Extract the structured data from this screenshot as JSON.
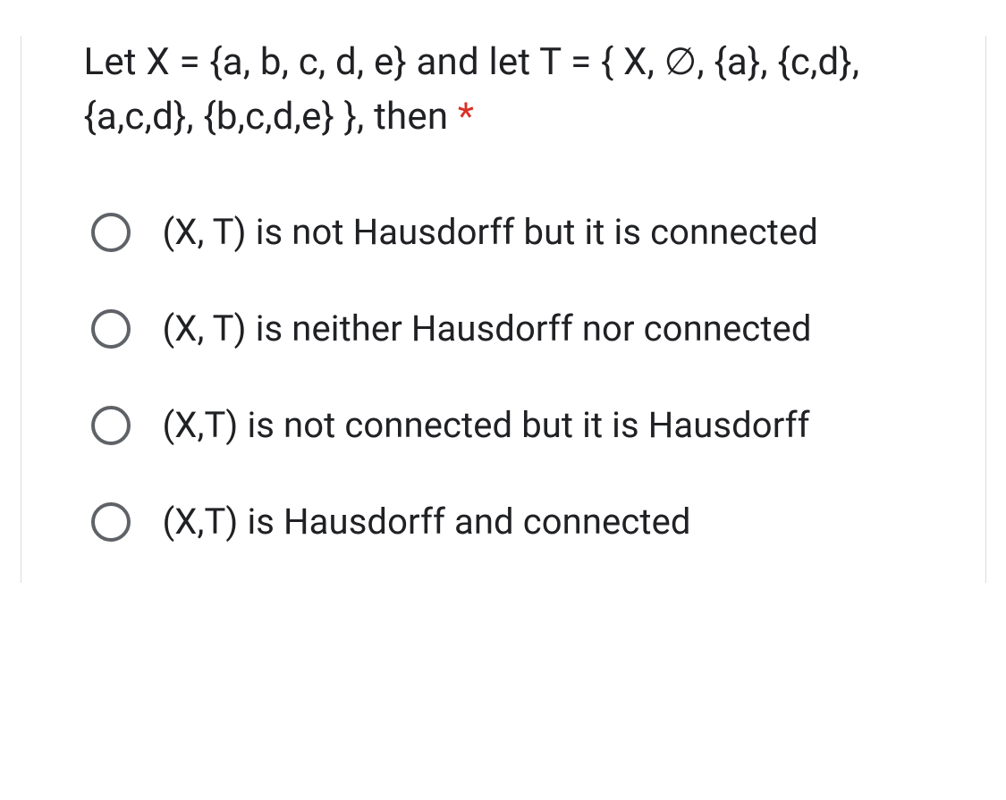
{
  "question": {
    "text": "Let X = {a, b, c, d, e} and let T = { X, ∅, {a}, {c,d}, {a,c,d}, {b,c,d,e} }, then ",
    "required_mark": "*"
  },
  "options": [
    {
      "label": "(X, T) is not Hausdorff but it is connected"
    },
    {
      "label": "(X, T) is neither Hausdorff nor connected"
    },
    {
      "label": "(X,T) is not connected but it is Hausdorff"
    },
    {
      "label": "(X,T) is Hausdorff and connected"
    }
  ],
  "colors": {
    "text": "#202124",
    "required": "#d93025",
    "radio_border": "#5f6368",
    "card_border": "#dadce0",
    "background": "#ffffff"
  },
  "typography": {
    "question_fontsize": 42,
    "option_fontsize": 40,
    "font_family": "Roboto, Arial, sans-serif"
  }
}
